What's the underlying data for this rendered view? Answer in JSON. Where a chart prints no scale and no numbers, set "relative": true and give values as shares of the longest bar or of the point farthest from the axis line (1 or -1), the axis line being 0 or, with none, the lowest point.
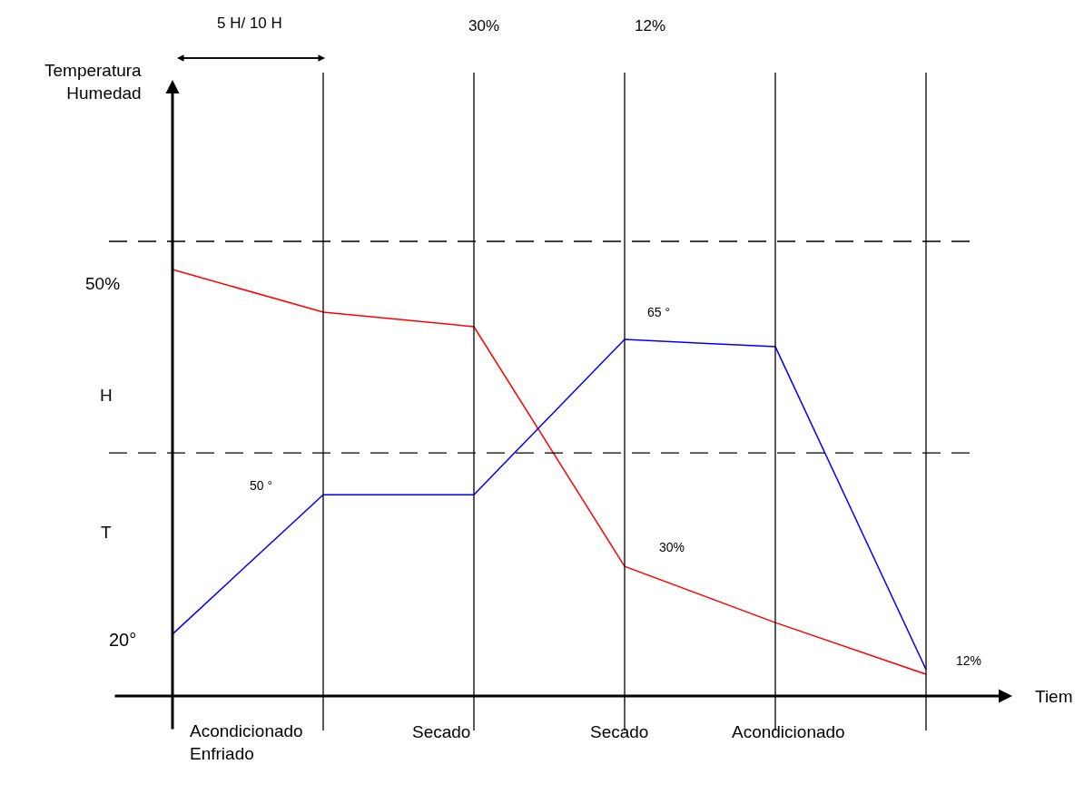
{
  "chart_data": {
    "type": "line",
    "relative": true,
    "xlabel": "Tiem",
    "categories": [
      null,
      null,
      null,
      null,
      null,
      null
    ],
    "series": [
      {
        "color": "#ff0000",
        "values": [
          1,
          0.9,
          0.866,
          0.304,
          0.172,
          0.051
        ]
      },
      {
        "color": "#0000ff",
        "values": [
          0.145,
          0.472,
          0.472,
          0.836,
          0.819,
          0.062
        ]
      }
    ],
    "ref_lines": [
      {
        "axis": "y",
        "value": 1.066,
        "line_style": "dashed",
        "color": "#000000"
      },
      {
        "axis": "y",
        "value": 0.57,
        "line_style": "dashed",
        "color": "#000000"
      }
    ],
    "grid": "x",
    "marker": "none",
    "line_style": "solid",
    "annotations": [
      "5 H/ 10 H",
      "30%",
      "12%",
      "50%",
      "H",
      "T",
      "20°",
      "50 °",
      "65 °",
      "30%",
      "12%",
      "Acondicionado\nEnfriado",
      "Secado",
      "Secado",
      "Acondicionado",
      "Temperatura\nHumedad"
    ]
  }
}
